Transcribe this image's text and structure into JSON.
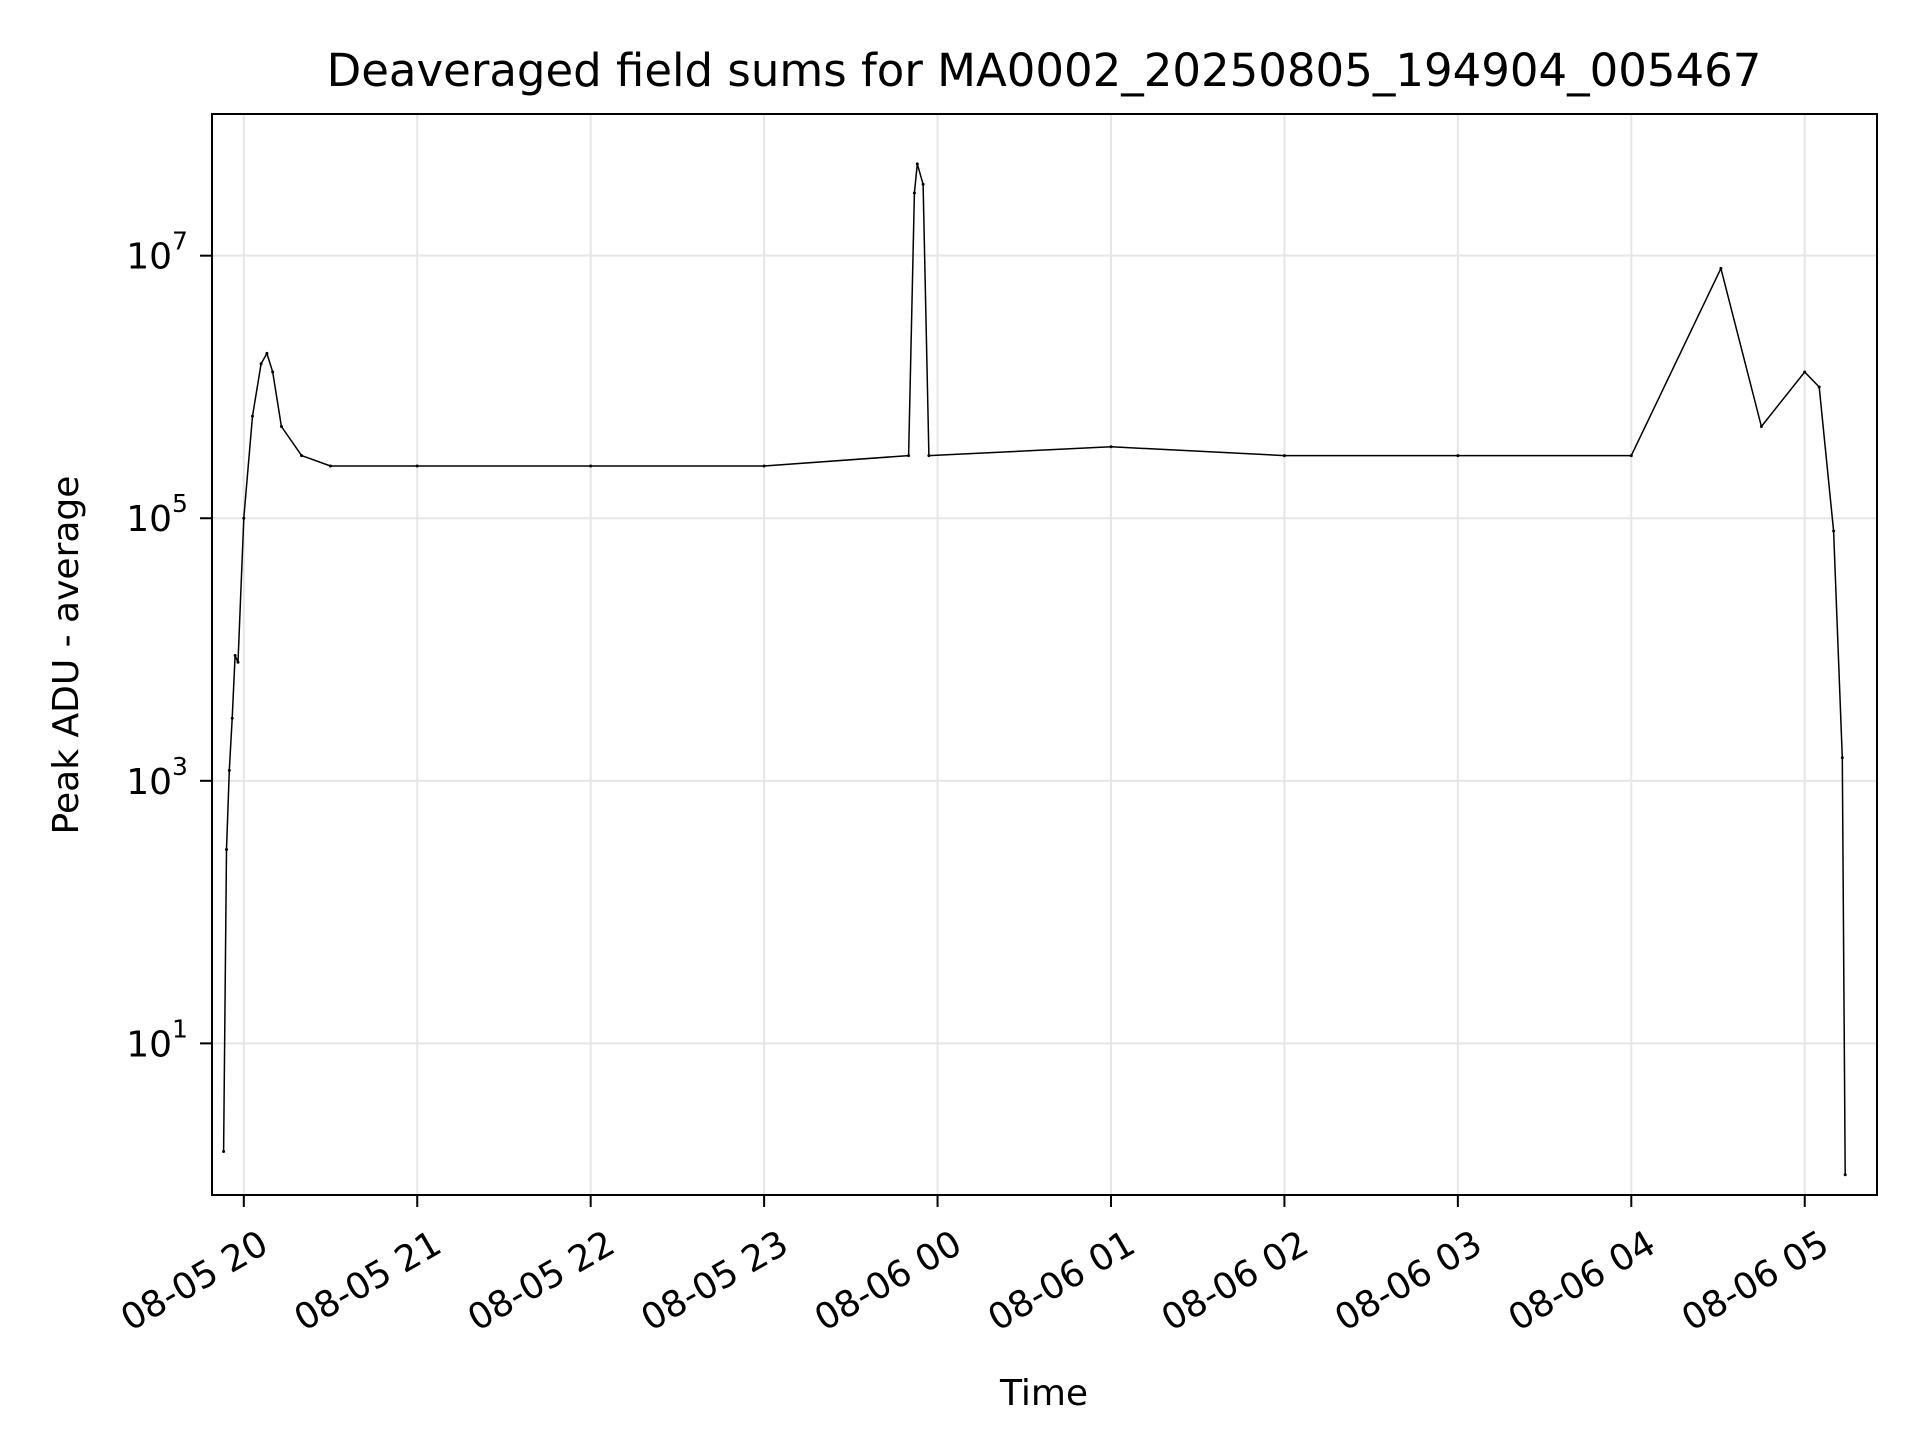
{
  "chart_data": {
    "type": "line",
    "title": "Deaveraged field sums for MA0002_20250805_194904_005467",
    "xlabel": "Time",
    "ylabel": "Peak ADU - average",
    "x_axis": {
      "kind": "datetime",
      "range": [
        "2025-08-05 19:49",
        "2025-08-06 05:25"
      ],
      "ticks": [
        {
          "value": "2025-08-05 20:00",
          "label": "08-05 20"
        },
        {
          "value": "2025-08-05 21:00",
          "label": "08-05 21"
        },
        {
          "value": "2025-08-05 22:00",
          "label": "08-05 22"
        },
        {
          "value": "2025-08-05 23:00",
          "label": "08-05 23"
        },
        {
          "value": "2025-08-06 00:00",
          "label": "08-06 00"
        },
        {
          "value": "2025-08-06 01:00",
          "label": "08-06 01"
        },
        {
          "value": "2025-08-06 02:00",
          "label": "08-06 02"
        },
        {
          "value": "2025-08-06 03:00",
          "label": "08-06 03"
        },
        {
          "value": "2025-08-06 04:00",
          "label": "08-06 04"
        },
        {
          "value": "2025-08-06 05:00",
          "label": "08-06 05"
        }
      ],
      "tick_label_rotation_deg": 30
    },
    "y_axis": {
      "scale": "log",
      "range": [
        0.7,
        120000000
      ],
      "ticks": [
        {
          "value": 10,
          "base": "10",
          "exp": "1"
        },
        {
          "value": 1000,
          "base": "10",
          "exp": "3"
        },
        {
          "value": 100000,
          "base": "10",
          "exp": "5"
        },
        {
          "value": 10000000,
          "base": "10",
          "exp": "7"
        }
      ]
    },
    "grid": true,
    "legend": "none",
    "series": [
      {
        "color": "#000000",
        "points": [
          [
            "2025-08-05 19:53",
            1.5
          ],
          [
            "2025-08-05 19:54",
            300
          ],
          [
            "2025-08-05 19:55",
            1200
          ],
          [
            "2025-08-05 19:56",
            3000
          ],
          [
            "2025-08-05 19:57",
            9000
          ],
          [
            "2025-08-05 19:58",
            8000
          ],
          [
            "2025-08-05 20:00",
            100000
          ],
          [
            "2025-08-05 20:03",
            600000
          ],
          [
            "2025-08-05 20:06",
            1500000
          ],
          [
            "2025-08-05 20:08",
            1800000
          ],
          [
            "2025-08-05 20:10",
            1300000
          ],
          [
            "2025-08-05 20:13",
            500000
          ],
          [
            "2025-08-05 20:20",
            300000
          ],
          [
            "2025-08-05 20:30",
            250000
          ],
          [
            "2025-08-05 21:00",
            250000
          ],
          [
            "2025-08-05 22:00",
            250000
          ],
          [
            "2025-08-05 23:00",
            250000
          ],
          [
            "2025-08-05 23:50",
            300000
          ],
          [
            "2025-08-05 23:52",
            30000000
          ],
          [
            "2025-08-05 23:53",
            50000000
          ],
          [
            "2025-08-05 23:55",
            35000000
          ],
          [
            "2025-08-05 23:57",
            300000
          ],
          [
            "2025-08-06 01:00",
            350000
          ],
          [
            "2025-08-06 02:00",
            300000
          ],
          [
            "2025-08-06 03:00",
            300000
          ],
          [
            "2025-08-06 04:00",
            300000
          ],
          [
            "2025-08-06 04:31",
            8000000
          ],
          [
            "2025-08-06 04:45",
            500000
          ],
          [
            "2025-08-06 05:00",
            1300000
          ],
          [
            "2025-08-06 05:05",
            1000000
          ],
          [
            "2025-08-06 05:10",
            80000
          ],
          [
            "2025-08-06 05:13",
            1500
          ],
          [
            "2025-08-06 05:14",
            1
          ]
        ]
      }
    ]
  }
}
